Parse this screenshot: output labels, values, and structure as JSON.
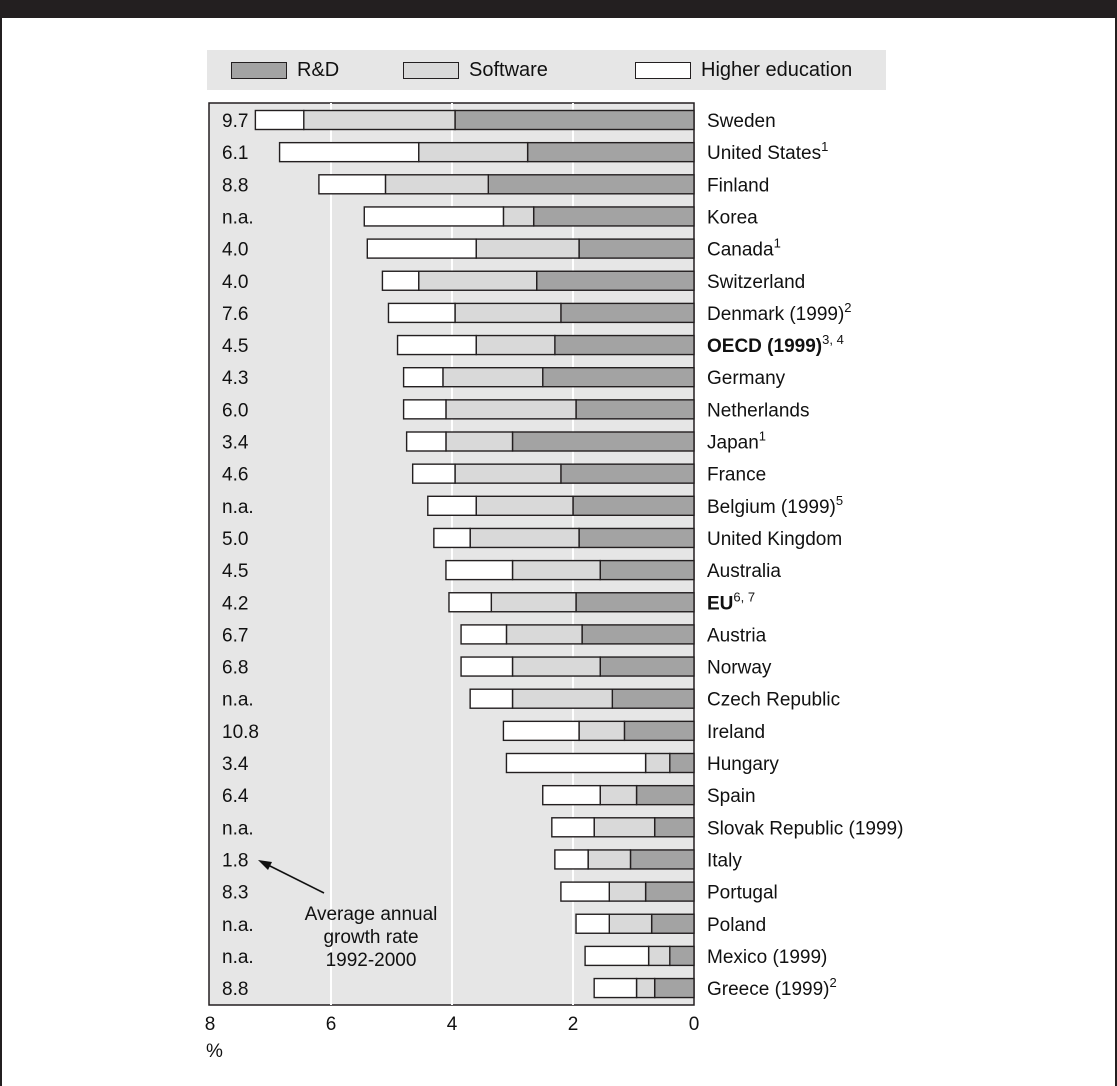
{
  "colors": {
    "rd": "#a3a3a3",
    "software": "#d9d9d9",
    "higher_education": "#ffffff",
    "plot_background": "#e6e6e6",
    "gridline": "#ffffff",
    "frame": "#231f20"
  },
  "legend": {
    "rd_label": "R&D",
    "software_label": "Software",
    "higher_education_label": "Higher education"
  },
  "annotation": {
    "line1": "Average annual",
    "line2": "growth rate",
    "line3": "1992-2000"
  },
  "chart_data": {
    "type": "bar",
    "orientation": "horizontal",
    "stacked": true,
    "xlim": [
      8,
      0
    ],
    "x_ticks": [
      "8",
      "6",
      "4",
      "2",
      "0"
    ],
    "x_unit": "%",
    "grid": true,
    "legend_position": "top",
    "series": [
      {
        "name": "R&D",
        "values": [
          3.95,
          2.75,
          3.4,
          2.65,
          1.9,
          2.6,
          2.2,
          2.3,
          2.5,
          1.95,
          3.0,
          2.2,
          2.0,
          1.9,
          1.55,
          1.95,
          1.85,
          1.55,
          1.35,
          1.15,
          0.4,
          0.95,
          0.65,
          1.05,
          0.8,
          0.7,
          0.4,
          0.65
        ]
      },
      {
        "name": "Software",
        "values": [
          2.5,
          1.8,
          1.7,
          0.5,
          1.7,
          1.95,
          1.75,
          1.3,
          1.65,
          2.15,
          1.1,
          1.75,
          1.6,
          1.8,
          1.45,
          1.4,
          1.25,
          1.45,
          1.65,
          0.75,
          0.4,
          0.6,
          1.0,
          0.7,
          0.6,
          0.7,
          0.35,
          0.3
        ]
      },
      {
        "name": "Higher education",
        "values": [
          0.8,
          2.3,
          1.1,
          2.3,
          1.8,
          0.6,
          1.1,
          1.3,
          0.65,
          0.7,
          0.65,
          0.7,
          0.8,
          0.6,
          1.1,
          0.7,
          0.75,
          0.85,
          0.7,
          1.25,
          2.3,
          0.95,
          0.7,
          0.55,
          0.8,
          0.55,
          1.05,
          0.7
        ]
      }
    ],
    "categories": [
      {
        "name": "Sweden",
        "sup": "",
        "bold": false,
        "growth": "9.7"
      },
      {
        "name": "United States",
        "sup": "1",
        "bold": false,
        "growth": "6.1"
      },
      {
        "name": "Finland",
        "sup": "",
        "bold": false,
        "growth": "8.8"
      },
      {
        "name": "Korea",
        "sup": "",
        "bold": false,
        "growth": "n.a."
      },
      {
        "name": "Canada",
        "sup": "1",
        "bold": false,
        "growth": "4.0"
      },
      {
        "name": "Switzerland",
        "sup": "",
        "bold": false,
        "growth": "4.0"
      },
      {
        "name": "Denmark (1999)",
        "sup": "2",
        "bold": false,
        "growth": "7.6"
      },
      {
        "name": "OECD (1999)",
        "sup": "3, 4",
        "bold": true,
        "growth": "4.5"
      },
      {
        "name": "Germany",
        "sup": "",
        "bold": false,
        "growth": "4.3"
      },
      {
        "name": "Netherlands",
        "sup": "",
        "bold": false,
        "growth": "6.0"
      },
      {
        "name": "Japan",
        "sup": "1",
        "bold": false,
        "growth": "3.4"
      },
      {
        "name": "France",
        "sup": "",
        "bold": false,
        "growth": "4.6"
      },
      {
        "name": "Belgium (1999)",
        "sup": "5",
        "bold": false,
        "growth": "n.a."
      },
      {
        "name": "United Kingdom",
        "sup": "",
        "bold": false,
        "growth": "5.0"
      },
      {
        "name": "Australia",
        "sup": "",
        "bold": false,
        "growth": "4.5"
      },
      {
        "name": "EU",
        "sup": "6, 7",
        "bold": true,
        "growth": "4.2"
      },
      {
        "name": "Austria",
        "sup": "",
        "bold": false,
        "growth": "6.7"
      },
      {
        "name": "Norway",
        "sup": "",
        "bold": false,
        "growth": "6.8"
      },
      {
        "name": "Czech Republic",
        "sup": "",
        "bold": false,
        "growth": "n.a."
      },
      {
        "name": "Ireland",
        "sup": "",
        "bold": false,
        "growth": "10.8"
      },
      {
        "name": "Hungary",
        "sup": "",
        "bold": false,
        "growth": "3.4"
      },
      {
        "name": "Spain",
        "sup": "",
        "bold": false,
        "growth": "6.4"
      },
      {
        "name": "Slovak Republic (1999)",
        "sup": "",
        "bold": false,
        "growth": "n.a."
      },
      {
        "name": "Italy",
        "sup": "",
        "bold": false,
        "growth": "1.8"
      },
      {
        "name": "Portugal",
        "sup": "",
        "bold": false,
        "growth": "8.3"
      },
      {
        "name": "Poland",
        "sup": "",
        "bold": false,
        "growth": "n.a."
      },
      {
        "name": "Mexico (1999)",
        "sup": "",
        "bold": false,
        "growth": "n.a."
      },
      {
        "name": "Greece (1999)",
        "sup": "2",
        "bold": false,
        "growth": "8.8"
      }
    ]
  }
}
